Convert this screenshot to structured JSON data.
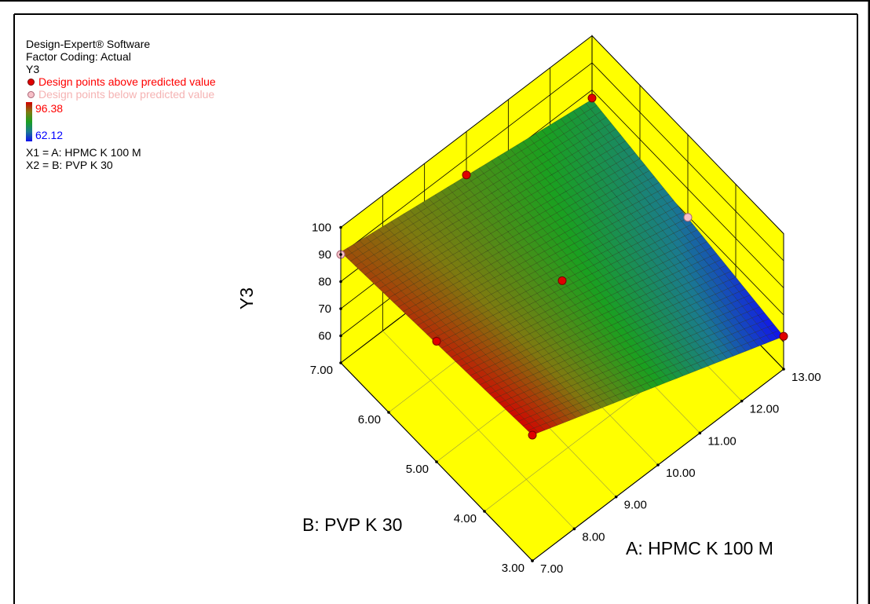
{
  "legend": {
    "software": "Design-Expert® Software",
    "coding": "Factor Coding: Actual",
    "response": "Y3",
    "above_label": "Design points above predicted value",
    "below_label": "Design points below predicted value",
    "above_color": "#ff0000",
    "below_color": "#f5b3b3",
    "max_value": "96.38",
    "min_value": "62.12",
    "x1_def": "X1 = A: HPMC K 100 M",
    "x2_def": "X2 = B: PVP K 30"
  },
  "colors": {
    "floor": "#ffff00",
    "walls": "#ffff00",
    "high": "#d40000",
    "low": "#1010f0"
  },
  "chart_data": {
    "type": "surface",
    "zlabel": "Y3",
    "xlabel": "A: HPMC K 100 M",
    "ylabel": "B: PVP K 30",
    "x_ticks": [
      "7.00",
      "8.00",
      "9.00",
      "10.00",
      "11.00",
      "12.00",
      "13.00"
    ],
    "y_ticks": [
      "3.00",
      "4.00",
      "5.00",
      "6.00",
      "7.00"
    ],
    "z_ticks": [
      "60",
      "70",
      "80",
      "90",
      "100"
    ],
    "xlim": [
      7,
      13
    ],
    "ylim": [
      3,
      7
    ],
    "zlim": [
      50,
      100
    ],
    "surface_corners": [
      {
        "x": 7,
        "y": 3,
        "z": 96.4
      },
      {
        "x": 13,
        "y": 3,
        "z": 62.1
      },
      {
        "x": 13,
        "y": 7,
        "z": 76.5
      },
      {
        "x": 7,
        "y": 7,
        "z": 90.9
      }
    ],
    "design_points": [
      {
        "x": 7,
        "y": 3,
        "z": 96.38,
        "position": "above"
      },
      {
        "x": 13,
        "y": 3,
        "z": 62.12,
        "position": "above"
      },
      {
        "x": 7,
        "y": 5,
        "z": 94.5,
        "position": "above"
      },
      {
        "x": 10,
        "y": 5,
        "z": 81.5,
        "position": "above"
      },
      {
        "x": 13,
        "y": 5,
        "z": 69.5,
        "position": "below"
      },
      {
        "x": 7,
        "y": 7,
        "z": 90.0,
        "position": "below"
      },
      {
        "x": 10,
        "y": 7,
        "z": 84.0,
        "position": "above"
      },
      {
        "x": 13,
        "y": 7,
        "z": 77.0,
        "position": "above"
      }
    ]
  }
}
